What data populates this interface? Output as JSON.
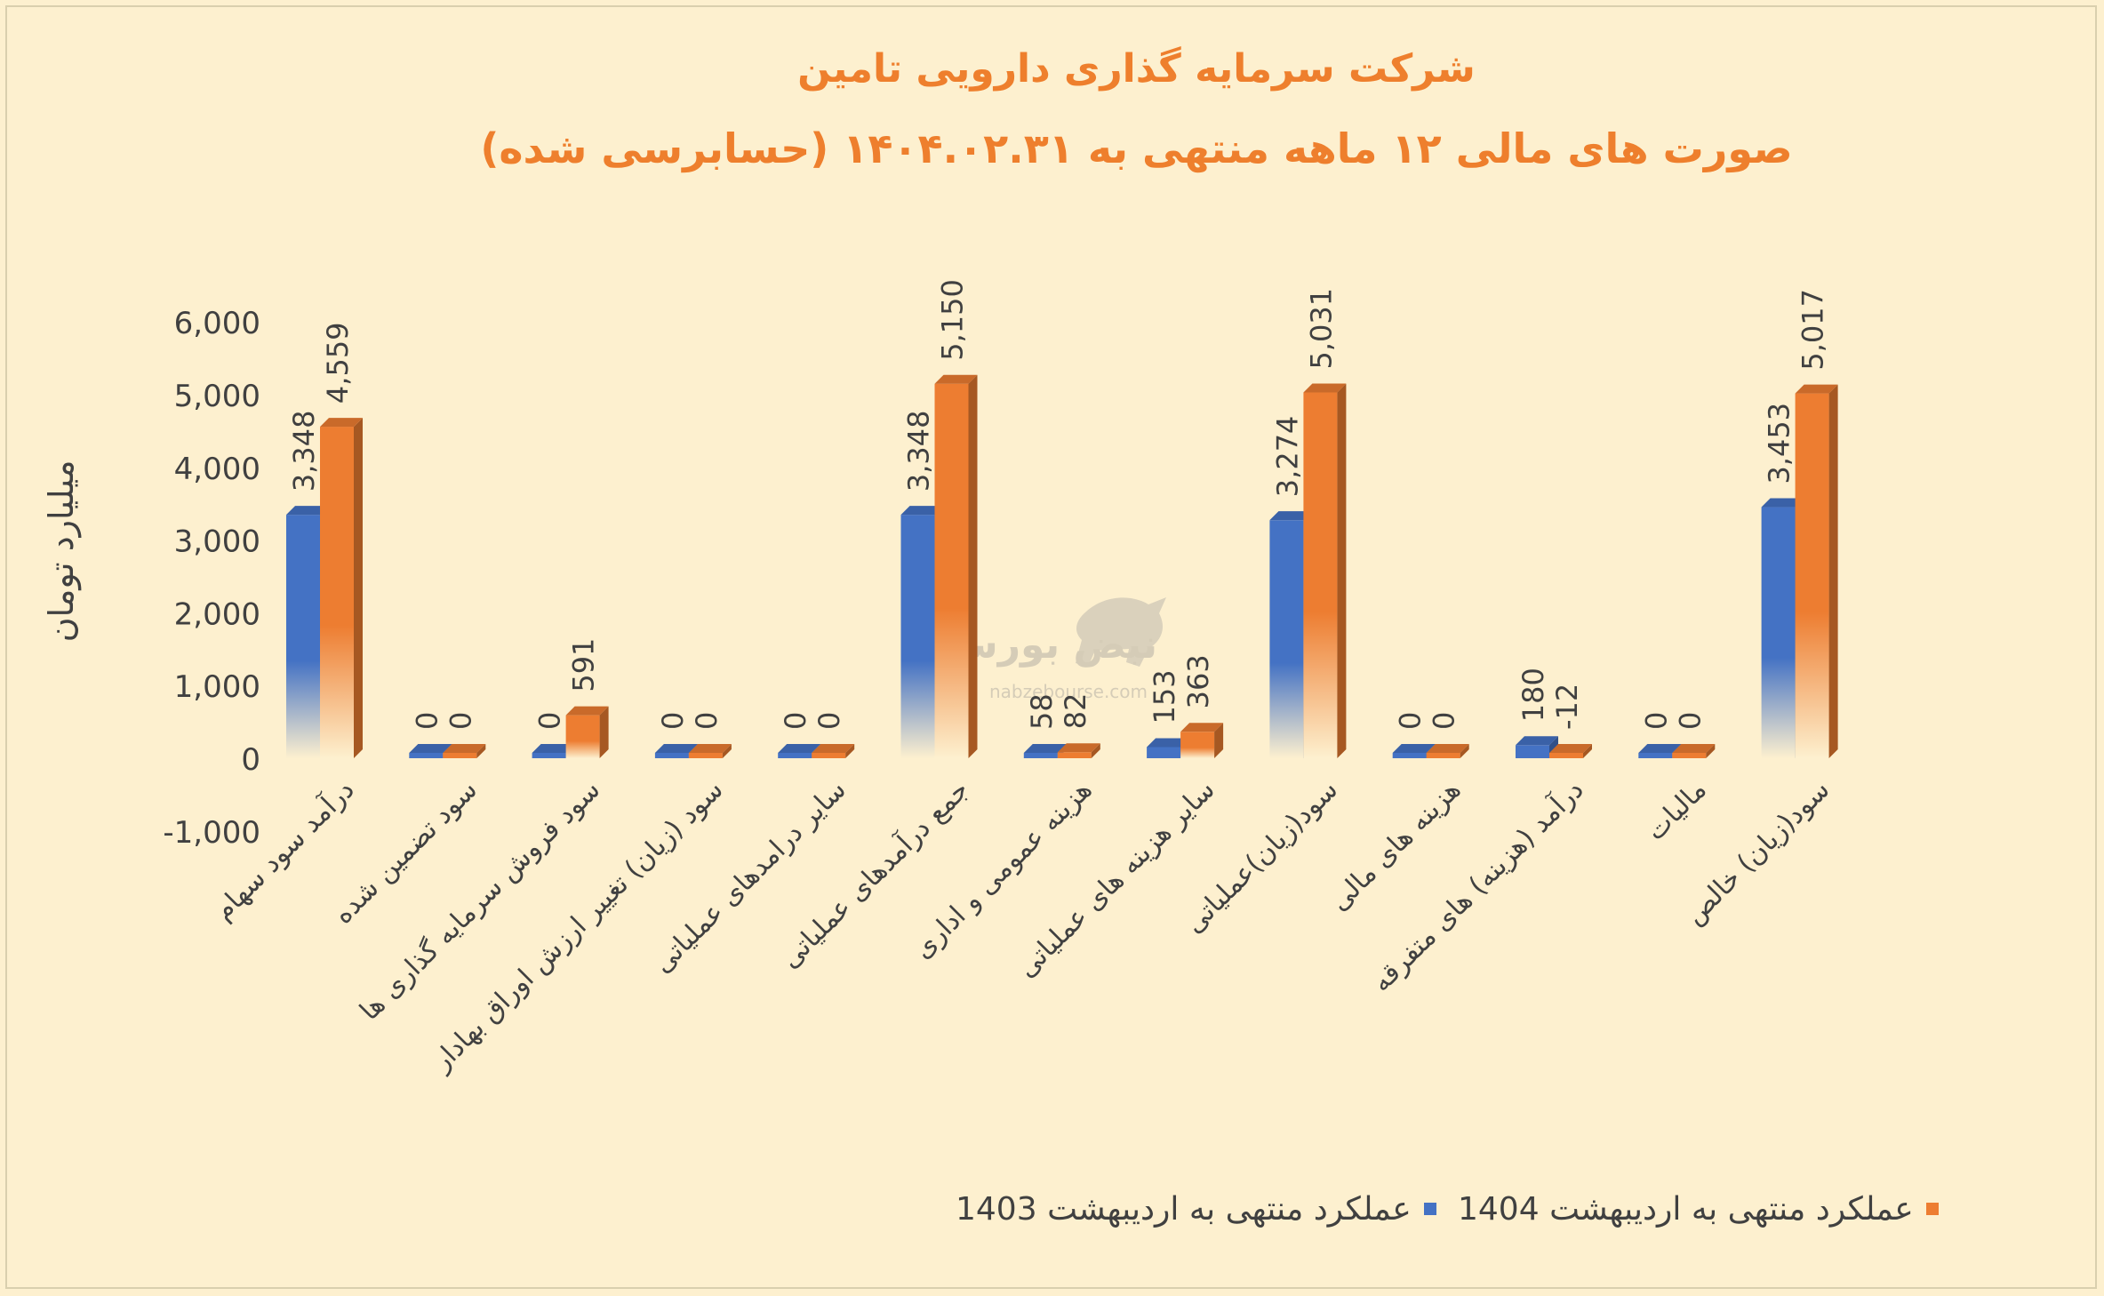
{
  "chart_data": {
    "type": "bar",
    "title": "شرکت سرمایه گذاری دارویی تامین",
    "subtitle": "صورت های مالی ۱۲ ماهه منتهی به ۱۴۰۴.۰۲.۳۱ (حسابرسی شده)",
    "ylabel": "میلیارد تومان",
    "xlabel": "",
    "ylim": [
      -1000,
      6000
    ],
    "yticks": [
      "-1,000",
      "0",
      "1,000",
      "2,000",
      "3,000",
      "4,000",
      "5,000",
      "6,000"
    ],
    "ytick_values": [
      -1000,
      0,
      1000,
      2000,
      3000,
      4000,
      5000,
      6000
    ],
    "categories": [
      "درآمد سود سهام",
      "سود تضمین شده",
      "سود فروش سرمایه گذاری ها",
      "سود (زیان) تغییر ارزش اوراق بهادار",
      "سایر درامدهای عملیاتی",
      "جمع درآمدهای عملیاتی",
      "هزینه عمومی و اداری",
      "سایر هزینه های عملیاتی",
      "سود(زیان)عملیاتی",
      "هزینه های مالی",
      "درآمد (هزینه) های متفرقه",
      "مالیات",
      "سود(زیان) خالص"
    ],
    "series": [
      {
        "name": "عملکرد منتهی به اردیبهشت 1403",
        "color": "#4472c4",
        "values": [
          3348,
          0,
          0,
          0,
          0,
          3348,
          58,
          153,
          3274,
          0,
          180,
          0,
          3453
        ],
        "labels": [
          "3,348",
          "0",
          "0",
          "0",
          "0",
          "3,348",
          "58",
          "153",
          "3,274",
          "0",
          "180",
          "0",
          "3,453"
        ]
      },
      {
        "name": "عملکرد منتهی به اردیبهشت 1404",
        "color": "#ed7d31",
        "values": [
          4559,
          0,
          591,
          0,
          0,
          5150,
          82,
          363,
          5031,
          0,
          -12,
          0,
          5017
        ],
        "labels": [
          "4,559",
          "0",
          "591",
          "0",
          "0",
          "5,150",
          "82",
          "363",
          "5,031",
          "0",
          "-12",
          "0",
          "5,017"
        ]
      }
    ],
    "grid": false,
    "legend_position": "bottom"
  },
  "watermark": {
    "text": "نبض بورس",
    "url_text": "nabzebourse.com",
    "color": "#8c8c8c"
  }
}
